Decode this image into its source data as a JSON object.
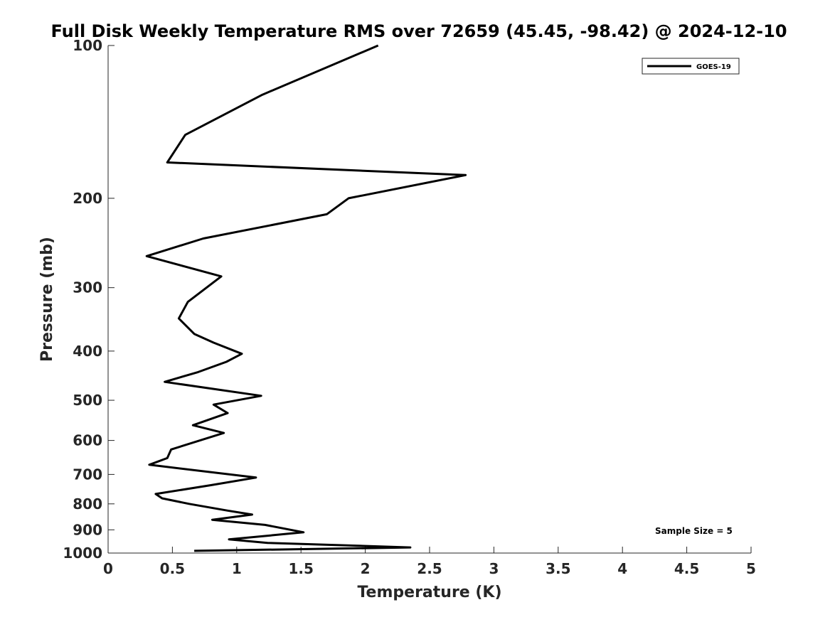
{
  "chart_data": {
    "type": "line",
    "title": "Full Disk Weekly Temperature RMS over 72659 (45.45, -98.42) @ 2024-12-10",
    "xlabel": "Temperature (K)",
    "ylabel": "Pressure (mb)",
    "xlim": [
      0,
      5
    ],
    "ylim": [
      100,
      1000
    ],
    "y_scale": "log",
    "y_reversed": true,
    "grid": false,
    "legend_position": "top-right",
    "x_ticks": [
      0,
      0.5,
      1,
      1.5,
      2,
      2.5,
      3,
      3.5,
      4,
      4.5,
      5
    ],
    "x_tick_labels": [
      "0",
      "0.5",
      "1",
      "1.5",
      "2",
      "2.5",
      "3",
      "3.5",
      "4",
      "4.5",
      "5"
    ],
    "y_ticks": [
      100,
      200,
      300,
      400,
      500,
      600,
      700,
      800,
      900,
      1000
    ],
    "y_tick_labels": [
      "100",
      "200",
      "300",
      "400",
      "500",
      "600",
      "700",
      "800",
      "900",
      "1000"
    ],
    "annotation": "Sample Size = 5",
    "series": [
      {
        "name": "GOES-19",
        "color": "#000000",
        "x": [
          2.1,
          1.2,
          0.6,
          0.46,
          2.78,
          1.87,
          1.7,
          0.74,
          0.3,
          0.88,
          0.62,
          0.55,
          0.67,
          0.82,
          1.04,
          0.92,
          0.7,
          0.44,
          1.19,
          0.82,
          0.93,
          0.66,
          0.9,
          0.49,
          0.46,
          0.32,
          1.15,
          0.8,
          0.37,
          0.42,
          0.63,
          0.93,
          1.12,
          0.81,
          1.22,
          1.52,
          0.94,
          1.24,
          2.35,
          0.67
        ],
        "y": [
          100,
          125,
          150,
          170,
          180,
          200,
          215,
          240,
          260,
          285,
          320,
          345,
          370,
          385,
          405,
          420,
          440,
          460,
          490,
          510,
          530,
          560,
          580,
          625,
          650,
          670,
          710,
          735,
          765,
          780,
          800,
          825,
          840,
          860,
          880,
          910,
          940,
          955,
          975,
          990
        ]
      }
    ]
  }
}
